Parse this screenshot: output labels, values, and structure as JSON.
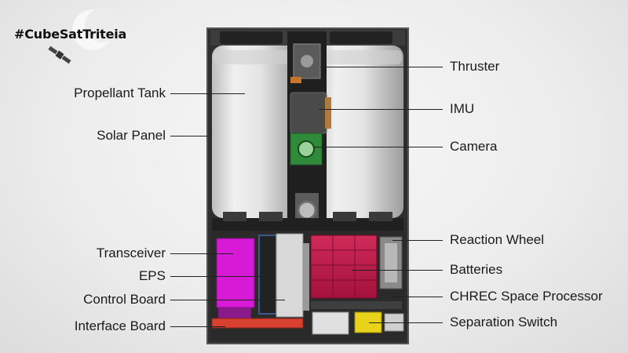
{
  "logo": {
    "hashtag": "#CubeSatTriteia"
  },
  "labels": {
    "left": {
      "propellant_tank": "Propellant Tank",
      "solar_panel": "Solar Panel",
      "transceiver": "Transceiver",
      "eps": "EPS",
      "control_board": "Control Board",
      "interface_board": "Interface Board"
    },
    "right": {
      "thruster": "Thruster",
      "imu": "IMU",
      "camera": "Camera",
      "reaction_wheel": "Reaction Wheel",
      "batteries": "Batteries",
      "chrec": "CHREC Space Processor",
      "separation_switch": "Separation Switch"
    }
  },
  "colors": {
    "frame": "#3a3a3a",
    "tank": "#e6e6e6",
    "transceiver": "#d61ad6",
    "batteries": "#c4184a",
    "interface_board": "#d8402f",
    "separation_switch": "#e8d21a",
    "camera_board": "#2f8a3a"
  }
}
